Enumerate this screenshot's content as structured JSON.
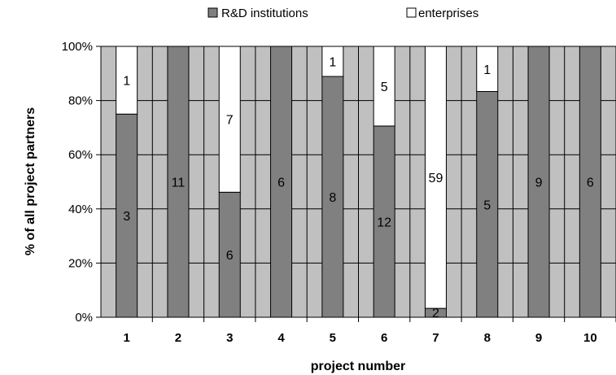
{
  "chart_data": {
    "type": "bar",
    "stacked": "percent",
    "categories": [
      "1",
      "2",
      "3",
      "4",
      "5",
      "6",
      "7",
      "8",
      "9",
      "10"
    ],
    "series": [
      {
        "name": "R&D institutions",
        "values": [
          3,
          11,
          6,
          6,
          8,
          12,
          2,
          5,
          9,
          6
        ],
        "color": "#808080"
      },
      {
        "name": "enterprises",
        "values": [
          1,
          0,
          7,
          0,
          1,
          5,
          59,
          1,
          0,
          0
        ],
        "color": "#ffffff"
      }
    ],
    "data_labels": {
      "R&D institutions": [
        "3",
        "11",
        "6",
        "6",
        "8",
        "12",
        "2",
        "5",
        "9",
        "6"
      ],
      "enterprises": [
        "1",
        "",
        "7",
        "",
        "1",
        "5",
        "59",
        "1",
        "",
        ""
      ]
    },
    "xlabel": "project number",
    "ylabel": "% of all project partners",
    "ylim": [
      0,
      100
    ],
    "yticks": [
      "0%",
      "20%",
      "40%",
      "60%",
      "80%",
      "100%"
    ],
    "plot_background": "#c0c0c0",
    "legend_position": "top",
    "grid": true
  }
}
